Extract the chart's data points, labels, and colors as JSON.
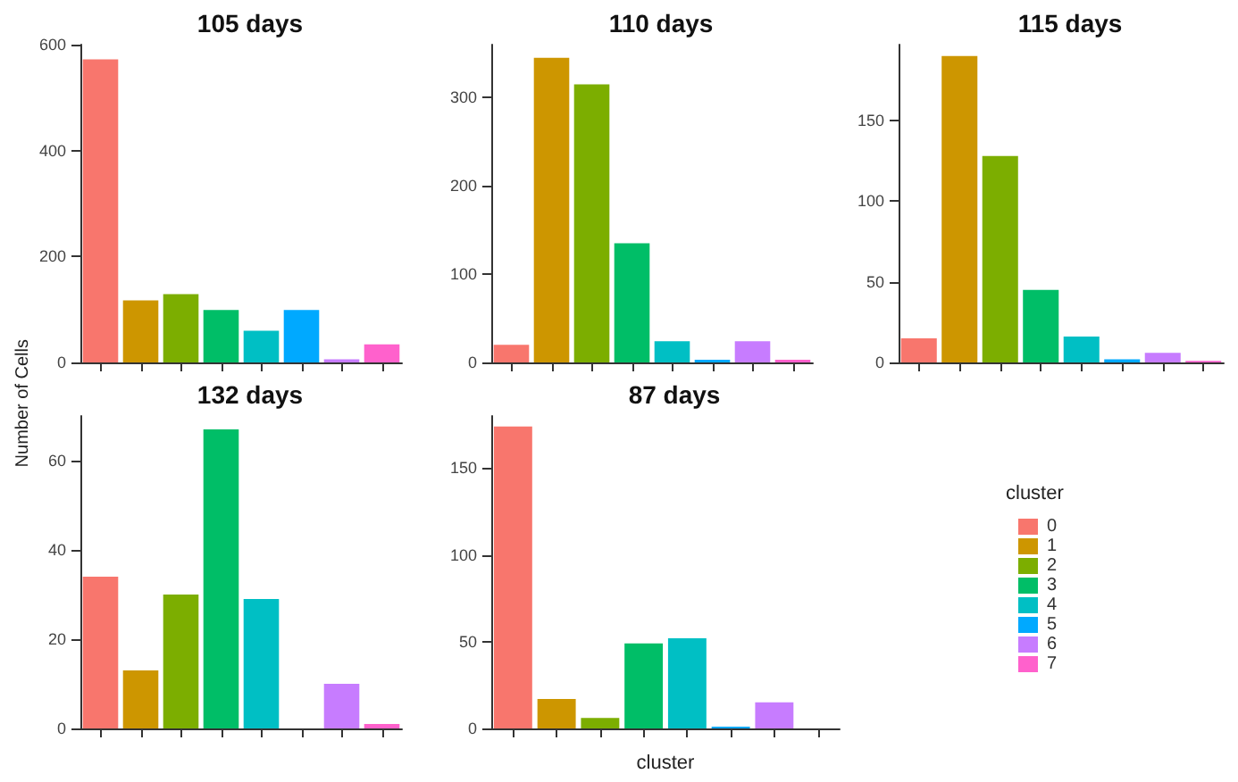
{
  "chart_data": [
    {
      "type": "bar",
      "title": "105 days",
      "categories": [
        null,
        null,
        null,
        null,
        null,
        null,
        null,
        null
      ],
      "stacked": true,
      "series": [
        {
          "color": "#f8766d",
          "values": [
            572,
            null,
            null,
            null,
            null,
            null,
            null,
            null
          ]
        },
        {
          "color": "#cd9600",
          "values": [
            null,
            117,
            null,
            null,
            null,
            null,
            null,
            null
          ]
        },
        {
          "color": "#7cae00",
          "values": [
            null,
            null,
            129,
            null,
            null,
            null,
            null,
            null
          ]
        },
        {
          "color": "#00be67",
          "values": [
            null,
            null,
            null,
            99,
            null,
            null,
            null,
            null
          ]
        },
        {
          "color": "#00bfc4",
          "values": [
            null,
            null,
            null,
            null,
            60,
            null,
            null,
            null
          ]
        },
        {
          "color": "#00a9ff",
          "values": [
            null,
            null,
            null,
            null,
            null,
            99,
            null,
            null
          ]
        },
        {
          "color": "#c77cff",
          "values": [
            null,
            null,
            null,
            null,
            null,
            null,
            6,
            null
          ]
        },
        {
          "color": "#ff61cc",
          "values": [
            null,
            null,
            null,
            null,
            null,
            null,
            null,
            34
          ]
        }
      ],
      "ylim": [
        0,
        600
      ],
      "yticks": [
        0,
        200,
        400,
        600
      ],
      "tick_labels": "y",
      "grid": false
    },
    {
      "type": "bar",
      "title": "110 days",
      "categories": [
        null,
        null,
        null,
        null,
        null,
        null,
        null,
        null
      ],
      "stacked": true,
      "series": [
        {
          "color": "#f8766d",
          "values": [
            20,
            null,
            null,
            null,
            null,
            null,
            null,
            null
          ]
        },
        {
          "color": "#cd9600",
          "values": [
            null,
            345,
            null,
            null,
            null,
            null,
            null,
            null
          ]
        },
        {
          "color": "#7cae00",
          "values": [
            null,
            null,
            315,
            null,
            null,
            null,
            null,
            null
          ]
        },
        {
          "color": "#00be67",
          "values": [
            null,
            null,
            null,
            135,
            null,
            null,
            null,
            null
          ]
        },
        {
          "color": "#00bfc4",
          "values": [
            null,
            null,
            null,
            null,
            24,
            null,
            null,
            null
          ]
        },
        {
          "color": "#00a9ff",
          "values": [
            null,
            null,
            null,
            null,
            null,
            3,
            null,
            null
          ]
        },
        {
          "color": "#c77cff",
          "values": [
            null,
            null,
            null,
            null,
            null,
            null,
            24,
            null
          ]
        },
        {
          "color": "#ff61cc",
          "values": [
            null,
            null,
            null,
            null,
            null,
            null,
            null,
            3
          ]
        }
      ],
      "ylim": [
        0,
        360
      ],
      "yticks": [
        0,
        100,
        200,
        300
      ],
      "tick_labels": "y",
      "grid": false
    },
    {
      "type": "bar",
      "title": "115 days",
      "categories": [
        null,
        null,
        null,
        null,
        null,
        null,
        null,
        null
      ],
      "stacked": true,
      "series": [
        {
          "color": "#f8766d",
          "values": [
            15,
            null,
            null,
            null,
            null,
            null,
            null,
            null
          ]
        },
        {
          "color": "#cd9600",
          "values": [
            null,
            190,
            null,
            null,
            null,
            null,
            null,
            null
          ]
        },
        {
          "color": "#7cae00",
          "values": [
            null,
            null,
            128,
            null,
            null,
            null,
            null,
            null
          ]
        },
        {
          "color": "#00be67",
          "values": [
            null,
            null,
            null,
            45,
            null,
            null,
            null,
            null
          ]
        },
        {
          "color": "#00bfc4",
          "values": [
            null,
            null,
            null,
            null,
            16,
            null,
            null,
            null
          ]
        },
        {
          "color": "#00a9ff",
          "values": [
            null,
            null,
            null,
            null,
            null,
            2,
            null,
            null
          ]
        },
        {
          "color": "#c77cff",
          "values": [
            null,
            null,
            null,
            null,
            null,
            null,
            6,
            null
          ]
        },
        {
          "color": "#ff61cc",
          "values": [
            null,
            null,
            null,
            null,
            null,
            null,
            null,
            1
          ]
        }
      ],
      "ylim": [
        0,
        197
      ],
      "yticks": [
        0,
        50,
        100,
        150
      ],
      "tick_labels": "y",
      "grid": false
    },
    {
      "type": "bar",
      "title": "132 days",
      "ylabel": "Number of Cells",
      "categories": [
        null,
        null,
        null,
        null,
        null,
        null,
        null,
        null
      ],
      "stacked": true,
      "series": [
        {
          "color": "#f8766d",
          "values": [
            34,
            null,
            null,
            null,
            null,
            null,
            null,
            null
          ]
        },
        {
          "color": "#cd9600",
          "values": [
            null,
            13,
            null,
            null,
            null,
            null,
            null,
            null
          ]
        },
        {
          "color": "#7cae00",
          "values": [
            null,
            null,
            30,
            null,
            null,
            null,
            null,
            null
          ]
        },
        {
          "color": "#00be67",
          "values": [
            null,
            null,
            null,
            67,
            null,
            null,
            null,
            null
          ]
        },
        {
          "color": "#00bfc4",
          "values": [
            null,
            null,
            null,
            null,
            29,
            null,
            null,
            null
          ]
        },
        {
          "color": "#00a9ff",
          "values": [
            null,
            null,
            null,
            null,
            null,
            0,
            null,
            null
          ]
        },
        {
          "color": "#c77cff",
          "values": [
            null,
            null,
            null,
            null,
            null,
            null,
            10,
            null
          ]
        },
        {
          "color": "#ff61cc",
          "values": [
            null,
            null,
            null,
            null,
            null,
            null,
            null,
            1
          ]
        }
      ],
      "ylim": [
        0,
        70
      ],
      "yticks": [
        0,
        20,
        40,
        60
      ],
      "tick_labels": "y",
      "grid": false
    },
    {
      "type": "bar",
      "title": "87 days",
      "xlabel": "cluster",
      "legend_title": "cluster",
      "legend": "right",
      "categories": [
        null,
        null,
        null,
        null,
        null,
        null,
        null,
        null
      ],
      "stacked": true,
      "series": [
        {
          "name": "0",
          "color": "#f8766d",
          "values": [
            174,
            null,
            null,
            null,
            null,
            null,
            null,
            null
          ]
        },
        {
          "name": "1",
          "color": "#cd9600",
          "values": [
            null,
            17,
            null,
            null,
            null,
            null,
            null,
            null
          ]
        },
        {
          "name": "2",
          "color": "#7cae00",
          "values": [
            null,
            null,
            6,
            null,
            null,
            null,
            null,
            null
          ]
        },
        {
          "name": "3",
          "color": "#00be67",
          "values": [
            null,
            null,
            null,
            49,
            null,
            null,
            null,
            null
          ]
        },
        {
          "name": "4",
          "color": "#00bfc4",
          "values": [
            null,
            null,
            null,
            null,
            52,
            null,
            null,
            null
          ]
        },
        {
          "name": "5",
          "color": "#00a9ff",
          "values": [
            null,
            null,
            null,
            null,
            null,
            1,
            null,
            null
          ]
        },
        {
          "name": "6",
          "color": "#c77cff",
          "values": [
            null,
            null,
            null,
            null,
            null,
            null,
            15,
            null
          ]
        },
        {
          "name": "7",
          "color": "#ff61cc",
          "values": [
            null,
            null,
            null,
            null,
            null,
            null,
            null,
            0
          ]
        }
      ],
      "ylim": [
        0,
        180
      ],
      "yticks": [
        0,
        50,
        100,
        150
      ],
      "tick_labels": "y",
      "grid": false
    }
  ]
}
